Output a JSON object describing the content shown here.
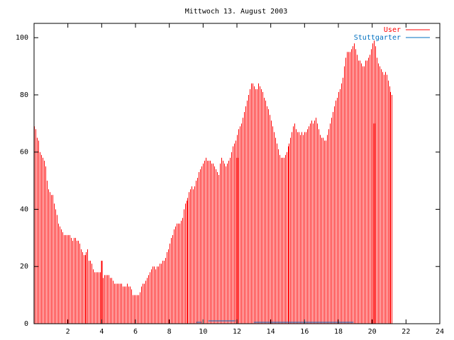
{
  "chart_data": {
    "type": "bar",
    "title": "Mittwoch 13. August 2003",
    "xlabel": "",
    "ylabel": "",
    "xlim": [
      0,
      24
    ],
    "ylim": [
      0,
      105
    ],
    "x_ticks": [
      2,
      4,
      6,
      8,
      10,
      12,
      14,
      16,
      18,
      20,
      22,
      24
    ],
    "y_ticks": [
      0,
      20,
      40,
      60,
      80,
      100
    ],
    "grid": false,
    "legend_position": "top-right",
    "series": [
      {
        "name": "User",
        "color": "#ff0000",
        "interval_minutes": 5,
        "values": [
          69,
          68,
          65,
          64,
          60,
          59,
          58,
          57,
          55,
          50,
          47,
          46,
          45,
          45,
          42,
          40,
          38,
          35,
          34,
          33,
          32,
          31,
          31,
          31,
          31,
          31,
          30,
          29,
          30,
          30,
          29,
          29,
          28,
          26,
          25,
          24,
          24,
          25,
          26,
          22,
          22,
          21,
          19,
          18,
          18,
          18,
          18,
          18,
          16,
          16,
          17,
          17,
          17,
          17,
          16,
          16,
          15,
          14,
          14,
          14,
          14,
          14,
          14,
          13,
          13,
          13,
          14,
          13,
          13,
          12,
          10,
          10,
          10,
          10,
          10,
          11,
          13,
          14,
          14,
          15,
          16,
          17,
          18,
          19,
          20,
          20,
          19,
          20,
          20,
          21,
          21,
          22,
          22,
          23,
          25,
          26,
          28,
          30,
          31,
          33,
          34,
          35,
          35,
          35,
          36,
          37,
          40,
          42,
          43,
          44,
          46,
          47,
          48,
          47,
          48,
          50,
          51,
          53,
          54,
          55,
          56,
          57,
          58,
          57,
          57,
          57,
          56,
          56,
          55,
          54,
          53,
          52,
          56,
          58,
          57,
          56,
          55,
          56,
          57,
          58,
          60,
          62,
          63,
          64,
          66,
          68,
          69,
          70,
          72,
          74,
          76,
          78,
          80,
          82,
          84,
          84,
          83,
          82,
          82,
          84,
          83,
          82,
          81,
          79,
          78,
          76,
          75,
          73,
          71,
          69,
          67,
          65,
          63,
          61,
          59,
          58,
          58,
          58,
          59,
          60,
          62,
          63,
          65,
          67,
          69,
          70,
          68,
          67,
          67,
          66,
          67,
          66,
          67,
          67,
          68,
          69,
          70,
          71,
          70,
          71,
          72,
          70,
          68,
          66,
          65,
          65,
          64,
          64,
          66,
          68,
          70,
          72,
          74,
          76,
          78,
          79,
          81,
          82,
          84,
          86,
          90,
          93,
          95,
          95,
          95,
          96,
          97,
          98,
          96,
          94,
          92,
          92,
          91,
          90,
          90,
          92,
          92,
          93,
          94,
          96,
          98,
          99,
          97,
          93,
          91,
          90,
          89,
          88,
          87,
          88,
          87,
          85,
          83,
          81,
          80
        ]
      },
      {
        "name": "Stuttgarter",
        "color": "#0070c0",
        "segments": [
          {
            "x": [
              9.6,
              9.9
            ],
            "y": 0.5
          },
          {
            "x": [
              10.3,
              11.9
            ],
            "y": 1
          },
          {
            "x": [
              13.0,
              16.3
            ],
            "y": 0.5
          },
          {
            "x": [
              16.3,
              18.9
            ],
            "y": 0.5
          }
        ]
      }
    ],
    "emphasized_markers": [
      {
        "x": 4.0,
        "value": 22
      },
      {
        "x": 12.0,
        "value": 58
      },
      {
        "x": 20.1,
        "value": 70
      }
    ]
  }
}
